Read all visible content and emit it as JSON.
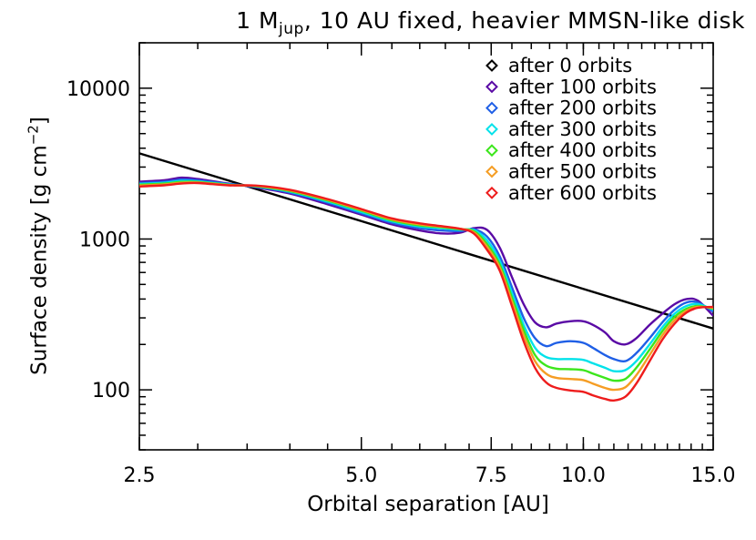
{
  "chart_data": {
    "type": "line",
    "title": {
      "prefix": "1 M",
      "subscript": "jup",
      "suffix": ", 10 AU fixed, heavier MMSN-like disk"
    },
    "xlabel": "Orbital separation [AU]",
    "ylabel": {
      "text": "Surface density [g cm",
      "superscript": "−2",
      "close": "]"
    },
    "x_scale": "log",
    "y_scale": "log",
    "xlim": [
      2.5,
      15.0
    ],
    "ylim": [
      40,
      20000
    ],
    "x_ticks": [
      {
        "value": 2.5,
        "label": "2.5"
      },
      {
        "value": 5.0,
        "label": "5.0"
      },
      {
        "value": 7.5,
        "label": "7.5"
      },
      {
        "value": 10.0,
        "label": "10.0"
      },
      {
        "value": 15.0,
        "label": "15.0"
      }
    ],
    "y_ticks": [
      {
        "value": 100,
        "label": "100"
      },
      {
        "value": 1000,
        "label": "1000"
      },
      {
        "value": 10000,
        "label": "10000"
      }
    ],
    "legend_position": "top-right",
    "series": [
      {
        "name": "after 0 orbits",
        "color": "#000000",
        "x": [
          2.5,
          15.0
        ],
        "y": [
          3700,
          255
        ]
      },
      {
        "name": "after 100 orbits",
        "color": "#5a0aa5",
        "x": [
          2.5,
          2.7,
          2.85,
          3.0,
          3.3,
          3.6,
          4.0,
          4.5,
          5.0,
          5.5,
          6.0,
          6.4,
          6.8,
          7.1,
          7.4,
          7.7,
          8.0,
          8.3,
          8.6,
          8.9,
          9.2,
          9.6,
          10.0,
          10.3,
          10.7,
          11.0,
          11.4,
          11.8,
          12.3,
          12.8,
          13.3,
          13.8,
          14.3,
          15.0
        ],
        "y": [
          2400,
          2450,
          2550,
          2500,
          2330,
          2200,
          2000,
          1700,
          1450,
          1250,
          1140,
          1090,
          1100,
          1180,
          1150,
          880,
          560,
          370,
          280,
          260,
          275,
          285,
          285,
          270,
          240,
          210,
          200,
          220,
          270,
          320,
          370,
          400,
          390,
          310
        ]
      },
      {
        "name": "after 200 orbits",
        "color": "#1f5fe6",
        "x": [
          2.5,
          2.7,
          2.85,
          3.0,
          3.3,
          3.6,
          4.0,
          4.5,
          5.0,
          5.5,
          6.0,
          6.4,
          6.8,
          7.1,
          7.4,
          7.7,
          8.0,
          8.3,
          8.6,
          8.9,
          9.2,
          9.6,
          10.0,
          10.3,
          10.7,
          11.0,
          11.4,
          11.8,
          12.3,
          12.8,
          13.3,
          13.8,
          14.3,
          15.0
        ],
        "y": [
          2350,
          2400,
          2480,
          2450,
          2320,
          2220,
          2030,
          1740,
          1480,
          1280,
          1180,
          1140,
          1130,
          1160,
          1040,
          770,
          480,
          300,
          220,
          195,
          205,
          210,
          205,
          190,
          170,
          160,
          155,
          175,
          220,
          280,
          340,
          380,
          380,
          330
        ]
      },
      {
        "name": "after 300 orbits",
        "color": "#00e2ea",
        "x": [
          2.5,
          2.7,
          2.85,
          3.0,
          3.3,
          3.6,
          4.0,
          4.5,
          5.0,
          5.5,
          6.0,
          6.4,
          6.8,
          7.1,
          7.4,
          7.7,
          8.0,
          8.3,
          8.6,
          8.9,
          9.2,
          9.6,
          10.0,
          10.3,
          10.7,
          11.0,
          11.4,
          11.8,
          12.3,
          12.8,
          13.3,
          13.8,
          14.3,
          15.0
        ],
        "y": [
          2320,
          2360,
          2430,
          2410,
          2300,
          2230,
          2060,
          1770,
          1510,
          1310,
          1210,
          1180,
          1150,
          1150,
          980,
          720,
          440,
          270,
          190,
          165,
          160,
          160,
          158,
          150,
          140,
          133,
          135,
          155,
          200,
          260,
          320,
          360,
          370,
          340
        ]
      },
      {
        "name": "after 400 orbits",
        "color": "#3ce61c",
        "x": [
          2.5,
          2.7,
          2.85,
          3.0,
          3.3,
          3.6,
          4.0,
          4.5,
          5.0,
          5.5,
          6.0,
          6.4,
          6.8,
          7.1,
          7.4,
          7.7,
          8.0,
          8.3,
          8.6,
          8.9,
          9.2,
          9.6,
          10.0,
          10.3,
          10.7,
          11.0,
          11.4,
          11.8,
          12.3,
          12.8,
          13.3,
          13.8,
          14.3,
          15.0
        ],
        "y": [
          2290,
          2330,
          2390,
          2390,
          2290,
          2240,
          2080,
          1800,
          1540,
          1330,
          1230,
          1200,
          1160,
          1130,
          930,
          680,
          410,
          250,
          170,
          145,
          138,
          137,
          135,
          128,
          120,
          115,
          118,
          140,
          185,
          245,
          305,
          345,
          360,
          345
        ]
      },
      {
        "name": "after 500 orbits",
        "color": "#f59d24",
        "x": [
          2.5,
          2.7,
          2.85,
          3.0,
          3.3,
          3.6,
          4.0,
          4.5,
          5.0,
          5.5,
          6.0,
          6.4,
          6.8,
          7.1,
          7.4,
          7.7,
          8.0,
          8.3,
          8.6,
          8.9,
          9.2,
          9.6,
          10.0,
          10.3,
          10.7,
          11.0,
          11.4,
          11.8,
          12.3,
          12.8,
          13.3,
          13.8,
          14.3,
          15.0
        ],
        "y": [
          2260,
          2300,
          2360,
          2370,
          2280,
          2250,
          2100,
          1820,
          1560,
          1350,
          1250,
          1210,
          1170,
          1110,
          890,
          650,
          385,
          230,
          155,
          128,
          120,
          118,
          116,
          110,
          103,
          100,
          104,
          125,
          170,
          230,
          290,
          335,
          355,
          350
        ]
      },
      {
        "name": "after 600 orbits",
        "color": "#ee1c1c",
        "x": [
          2.5,
          2.7,
          2.85,
          3.0,
          3.3,
          3.6,
          4.0,
          4.5,
          5.0,
          5.5,
          6.0,
          6.4,
          6.8,
          7.1,
          7.4,
          7.7,
          8.0,
          8.3,
          8.6,
          8.9,
          9.2,
          9.6,
          10.0,
          10.3,
          10.7,
          11.0,
          11.4,
          11.8,
          12.3,
          12.8,
          13.3,
          13.8,
          14.3,
          15.0
        ],
        "y": [
          2230,
          2270,
          2330,
          2350,
          2270,
          2260,
          2120,
          1840,
          1580,
          1370,
          1270,
          1220,
          1170,
          1090,
          850,
          620,
          360,
          210,
          140,
          112,
          103,
          99,
          97,
          92,
          87,
          85,
          90,
          110,
          155,
          215,
          275,
          325,
          350,
          355
        ]
      }
    ]
  }
}
